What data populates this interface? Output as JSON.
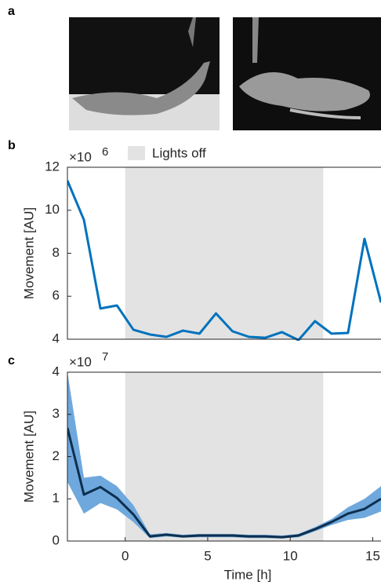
{
  "panel_labels": [
    "a",
    "b",
    "c"
  ],
  "chart_data": [
    {
      "type": "line",
      "y_label": "Movement [AU]",
      "y_scale_label": "×10",
      "y_scale_exponent": "6",
      "x": [
        -3.5,
        -2.5,
        -1.5,
        -0.5,
        0.5,
        1.5,
        2.5,
        3.5,
        4.5,
        5.5,
        6.5,
        7.5,
        8.5,
        9.5,
        10.5,
        11.5,
        12.5,
        13.5,
        14.5,
        15.5
      ],
      "series": [
        {
          "color": "#0072bd",
          "values": [
            11.38,
            9.55,
            5.43,
            5.57,
            4.44,
            4.22,
            4.11,
            4.4,
            4.26,
            5.2,
            4.37,
            4.11,
            4.07,
            4.33,
            3.96,
            4.84,
            4.26,
            4.29,
            8.67,
            5.71
          ]
        }
      ],
      "shade": {
        "label": "Lights off",
        "x": [
          0,
          12
        ],
        "color": "#e3e3e3"
      },
      "xlim": [
        -3.5,
        15.5
      ],
      "ylim": [
        4,
        12
      ],
      "yticks": [
        4,
        6,
        8,
        10,
        12
      ]
    },
    {
      "type": "band-line",
      "x_label": "Time [h]",
      "y_label": "Movement [AU]",
      "y_scale_label": "×10",
      "y_scale_exponent": "7",
      "x": [
        -3.5,
        -2.5,
        -1.5,
        -0.5,
        0.5,
        1.5,
        2.5,
        3.5,
        4.5,
        5.5,
        6.5,
        7.5,
        8.5,
        9.5,
        10.5,
        11.5,
        12.5,
        13.5,
        14.5,
        15.5
      ],
      "series": [
        {
          "color": "#0d2f4f",
          "band_color": "#6fa8dc",
          "values": [
            2.68,
            1.1,
            1.28,
            1.02,
            0.63,
            0.11,
            0.15,
            0.11,
            0.13,
            0.13,
            0.13,
            0.11,
            0.11,
            0.09,
            0.13,
            0.28,
            0.45,
            0.65,
            0.76,
            1.0
          ],
          "upper": [
            4.0,
            1.5,
            1.55,
            1.3,
            0.85,
            0.16,
            0.19,
            0.15,
            0.17,
            0.17,
            0.17,
            0.15,
            0.15,
            0.13,
            0.17,
            0.33,
            0.52,
            0.8,
            1.0,
            1.3
          ],
          "lower": [
            1.4,
            0.65,
            0.9,
            0.75,
            0.45,
            0.07,
            0.11,
            0.08,
            0.09,
            0.09,
            0.09,
            0.07,
            0.07,
            0.06,
            0.09,
            0.23,
            0.38,
            0.5,
            0.55,
            0.7
          ]
        }
      ],
      "shade": {
        "x": [
          0,
          12
        ],
        "color": "#e3e3e3"
      },
      "xlim": [
        -3.5,
        15.5
      ],
      "ylim": [
        0,
        4
      ],
      "xticks": [
        0,
        5,
        10,
        15
      ],
      "yticks": [
        0,
        1,
        2,
        3,
        4
      ]
    }
  ]
}
